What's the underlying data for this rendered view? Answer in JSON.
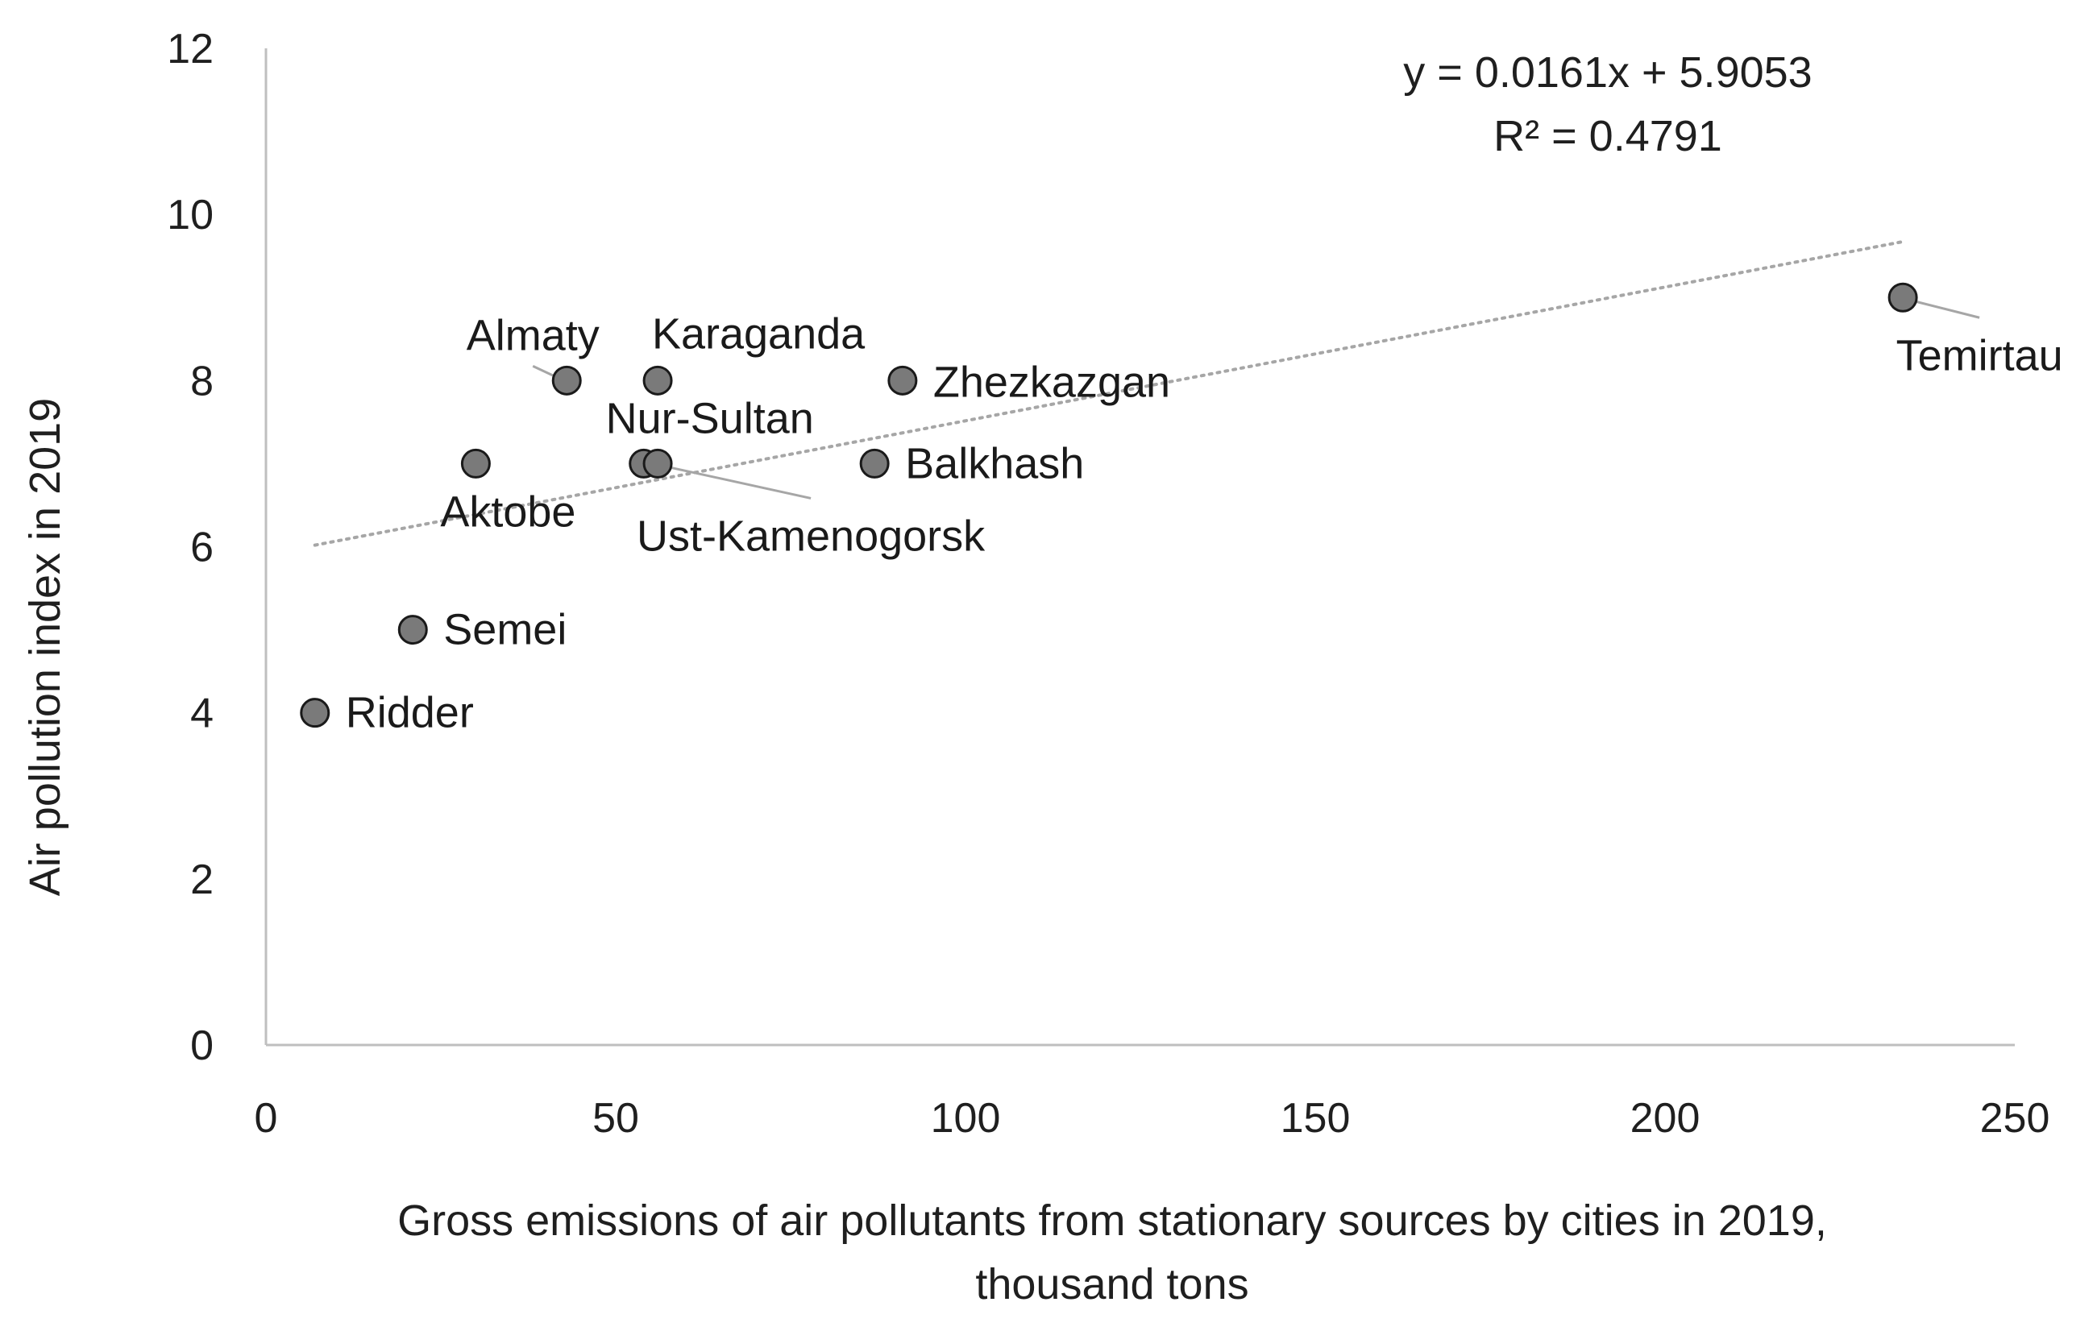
{
  "chart_data": {
    "type": "scatter",
    "xlabel_lines": [
      "Gross emissions of air pollutants from stationary sources by cities in 2019,",
      "thousand tons"
    ],
    "ylabel": "Air pollution index in 2019",
    "xlim": [
      0,
      250
    ],
    "ylim": [
      0,
      12
    ],
    "xticks": [
      0,
      50,
      100,
      150,
      200,
      250
    ],
    "yticks": [
      0,
      2,
      4,
      6,
      8,
      10,
      12
    ],
    "grid": false,
    "points": [
      {
        "label": "Ridder",
        "x": 7,
        "y": 4
      },
      {
        "label": "Semei",
        "x": 21,
        "y": 5
      },
      {
        "label": "Aktobe",
        "x": 30,
        "y": 7
      },
      {
        "label": "Almaty",
        "x": 43,
        "y": 8
      },
      {
        "label": "Karaganda",
        "x": 56,
        "y": 8
      },
      {
        "label": "Nur-Sultan",
        "x": 54,
        "y": 7
      },
      {
        "label": "Ust-Kamenogorsk",
        "x": 56,
        "y": 7
      },
      {
        "label": "Balkhash",
        "x": 87,
        "y": 7
      },
      {
        "label": "Zhezkazgan",
        "x": 91,
        "y": 8
      },
      {
        "label": "Temirtau",
        "x": 234,
        "y": 9
      }
    ],
    "trendline": {
      "type": "linear",
      "slope": 0.0161,
      "intercept": 5.9053,
      "x_range": [
        7,
        234
      ],
      "style": "dotted"
    },
    "equation_lines": [
      "y = 0.0161x + 5.9053",
      "R² = 0.4791"
    ],
    "colors": {
      "marker_fill": "#7a7a7a",
      "marker_stroke": "#1a1a1a",
      "axis": "#bfbfbf",
      "trendline": "#a6a6a6",
      "leader": "#a6a6a6"
    }
  }
}
